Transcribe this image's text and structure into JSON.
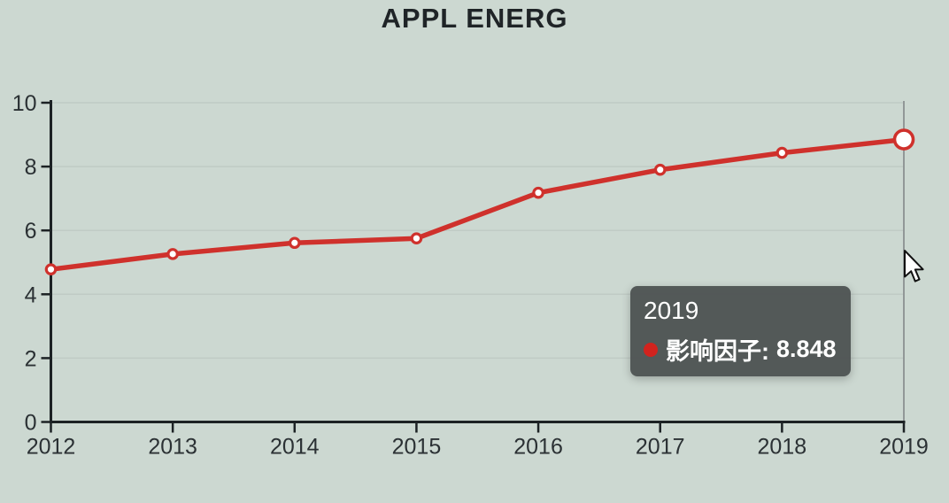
{
  "tooltip": {
    "year": "2019",
    "series_label": "影响因子:",
    "value": "8.848"
  },
  "colors": {
    "background": "#ccd8d1",
    "line": "#cf312c",
    "marker_fill": "#ffffff",
    "axis": "#1c2224",
    "tick_text": "#2b3134",
    "gridline": "rgba(150,160,155,0.22)",
    "crosshair": "#8b9192",
    "tooltip_bg": "rgba(78,83,83,0.96)",
    "tooltip_text": "#ffffff",
    "tooltip_dot": "#d2231e"
  },
  "chart_data": {
    "type": "line",
    "title": "APPL ENERG",
    "x": [
      "2012",
      "2013",
      "2014",
      "2015",
      "2016",
      "2017",
      "2018",
      "2019"
    ],
    "series": [
      {
        "name": "影响因子",
        "values": [
          4.78,
          5.26,
          5.61,
          5.75,
          7.18,
          7.9,
          8.43,
          8.848
        ]
      }
    ],
    "xlabel": "",
    "ylabel": "",
    "ylim": [
      0,
      10
    ],
    "yticks": [
      0,
      2,
      4,
      6,
      8,
      10
    ],
    "grid": "faint-horizontal",
    "legend": "none",
    "highlight_x": "2019",
    "highlight_value": 8.848
  }
}
